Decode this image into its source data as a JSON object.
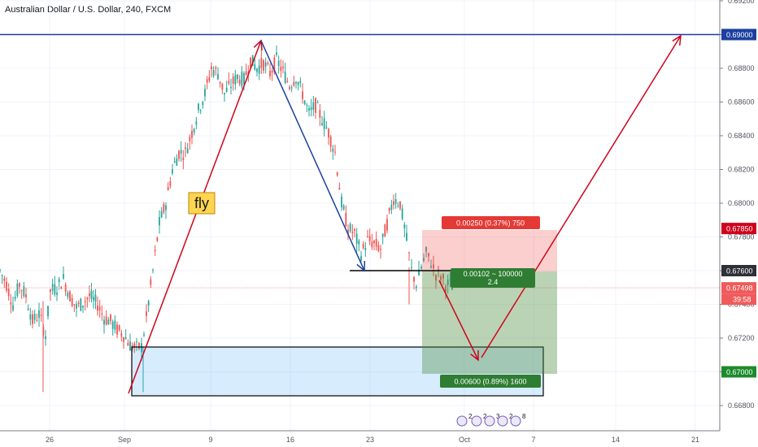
{
  "chart_data": {
    "type": "candlestick",
    "title": "Australian Dollar / U.S. Dollar, 240, FXCM",
    "ylim": [
      0.667,
      0.692
    ],
    "grid": true,
    "y_ticks": [
      "0.69200",
      "0.69000",
      "0.68800",
      "0.68600",
      "0.68400",
      "0.68200",
      "0.68000",
      "0.67800",
      "0.67600",
      "0.67400",
      "0.67200",
      "0.67000",
      "0.66800"
    ],
    "x_ticks": [
      "26",
      "Sep",
      "9",
      "16",
      "23",
      "Oct",
      "7",
      "14",
      "21"
    ],
    "price_tags": [
      {
        "label": "0.69000",
        "value": 0.69,
        "color": "#1c3fa0"
      },
      {
        "label": "0.67850",
        "value": 0.6785,
        "color": "#d0021b"
      },
      {
        "label": "0.67600",
        "value": 0.676,
        "color": "#2f3037"
      },
      {
        "label": "0.67498",
        "value": 0.67498,
        "color": "#f05a5a"
      },
      {
        "label": "0.67000",
        "value": 0.67,
        "color": "#1b8a2b"
      }
    ],
    "countdown": "39:58",
    "candles_summary": {
      "points": [
        [
          0,
          0.676
        ],
        [
          8,
          0.6752
        ],
        [
          16,
          0.674
        ],
        [
          24,
          0.6752
        ],
        [
          32,
          0.6745
        ],
        [
          40,
          0.673
        ],
        [
          48,
          0.6734
        ],
        [
          56,
          0.6722
        ],
        [
          62,
          0.6748
        ],
        [
          70,
          0.675
        ],
        [
          78,
          0.6755
        ],
        [
          86,
          0.6745
        ],
        [
          94,
          0.6738
        ],
        [
          102,
          0.6741
        ],
        [
          110,
          0.6745
        ],
        [
          120,
          0.674
        ],
        [
          128,
          0.6732
        ],
        [
          136,
          0.673
        ],
        [
          144,
          0.6725
        ],
        [
          152,
          0.6722
        ],
        [
          160,
          0.6716
        ],
        [
          168,
          0.6714
        ],
        [
          174,
          0.6715
        ],
        [
          180,
          0.6732
        ],
        [
          188,
          0.676
        ],
        [
          196,
          0.6788
        ],
        [
          204,
          0.68
        ],
        [
          212,
          0.682
        ],
        [
          220,
          0.683
        ],
        [
          228,
          0.683
        ],
        [
          236,
          0.6842
        ],
        [
          244,
          0.6855
        ],
        [
          252,
          0.6865
        ],
        [
          260,
          0.688
        ],
        [
          268,
          0.6877
        ],
        [
          276,
          0.6865
        ],
        [
          284,
          0.687
        ],
        [
          292,
          0.6875
        ],
        [
          300,
          0.6873
        ],
        [
          308,
          0.6885
        ],
        [
          316,
          0.688
        ],
        [
          324,
          0.6883
        ],
        [
          332,
          0.6877
        ],
        [
          340,
          0.6885
        ],
        [
          348,
          0.6878
        ],
        [
          356,
          0.687
        ],
        [
          364,
          0.6875
        ],
        [
          372,
          0.6865
        ],
        [
          380,
          0.6853
        ],
        [
          388,
          0.6858
        ],
        [
          396,
          0.685
        ],
        [
          404,
          0.6842
        ],
        [
          412,
          0.683
        ],
        [
          420,
          0.68
        ],
        [
          428,
          0.6785
        ],
        [
          436,
          0.6782
        ],
        [
          444,
          0.677
        ],
        [
          452,
          0.6778
        ],
        [
          460,
          0.6776
        ],
        [
          468,
          0.6773
        ],
        [
          476,
          0.6788
        ],
        [
          484,
          0.6803
        ],
        [
          492,
          0.68
        ],
        [
          500,
          0.6778
        ],
        [
          506,
          0.676
        ],
        [
          512,
          0.6752
        ],
        [
          518,
          0.6762
        ],
        [
          524,
          0.677
        ],
        [
          530,
          0.6765
        ],
        [
          536,
          0.6758
        ],
        [
          542,
          0.6757
        ],
        [
          548,
          0.6752
        ],
        [
          556,
          0.6751
        ],
        [
          560,
          0.6752
        ]
      ]
    },
    "annotations": [
      {
        "text": "fly",
        "type": "label"
      },
      {
        "text": "0.00250 (0.37%) 750",
        "type": "stop"
      },
      {
        "text": "0.00102 ~ 100000",
        "type": "entry"
      },
      {
        "text": "2.4",
        "type": "ratio"
      },
      {
        "text": "0.00600 (0.89%) 1600",
        "type": "target"
      }
    ],
    "event_marks": [
      "2",
      "2",
      "3",
      "2",
      "8"
    ]
  }
}
